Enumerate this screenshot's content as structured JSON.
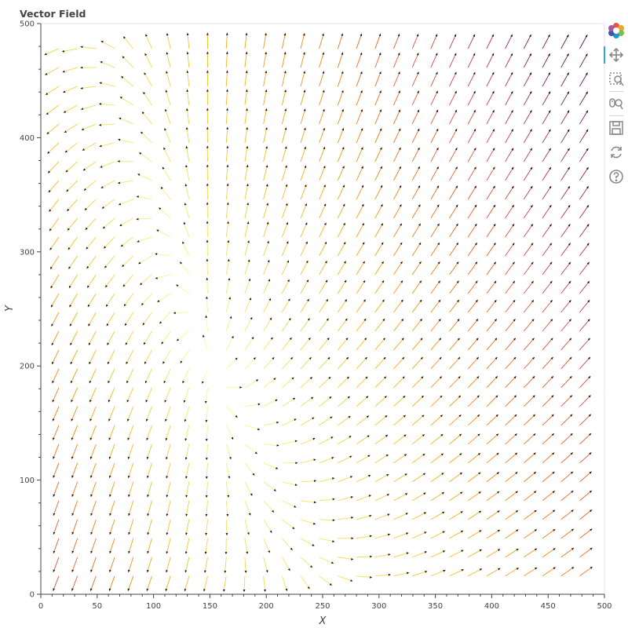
{
  "chart_data": {
    "type": "quiver",
    "title": "Vector Field",
    "xlabel": "X",
    "ylabel": "Y",
    "xlim": [
      0,
      500
    ],
    "ylim": [
      0,
      500
    ],
    "x_ticks": [
      0,
      50,
      100,
      150,
      200,
      250,
      300,
      350,
      400,
      450,
      500
    ],
    "y_ticks": [
      0,
      100,
      200,
      300,
      400,
      500
    ],
    "grid": false,
    "legend": "none",
    "colormap": "inferno (reversed): yellow = low magnitude, dark purple = high magnitude",
    "colors": {
      "low": "#fcffa4",
      "mid": "#f98e09",
      "high": "#57106e",
      "max": "#000004"
    },
    "field": {
      "grid_start": 16,
      "grid_step": 16.5,
      "grid_count": 29,
      "description": "flow toward a saddle near (150,200): strong inward-left flow on the left, leftward flow along the bottom, upward-right on the right side"
    }
  },
  "toolbar": {
    "tools": [
      {
        "name": "bokeh-logo-icon",
        "interactable": true
      },
      {
        "name": "pan-tool-icon",
        "interactable": true,
        "active": true
      },
      {
        "name": "box-zoom-tool-icon",
        "interactable": true
      },
      {
        "name": "wheel-zoom-tool-icon",
        "interactable": true
      },
      {
        "name": "save-tool-icon",
        "interactable": true
      },
      {
        "name": "reset-tool-icon",
        "interactable": true
      },
      {
        "name": "help-tool-icon",
        "interactable": true
      }
    ]
  }
}
